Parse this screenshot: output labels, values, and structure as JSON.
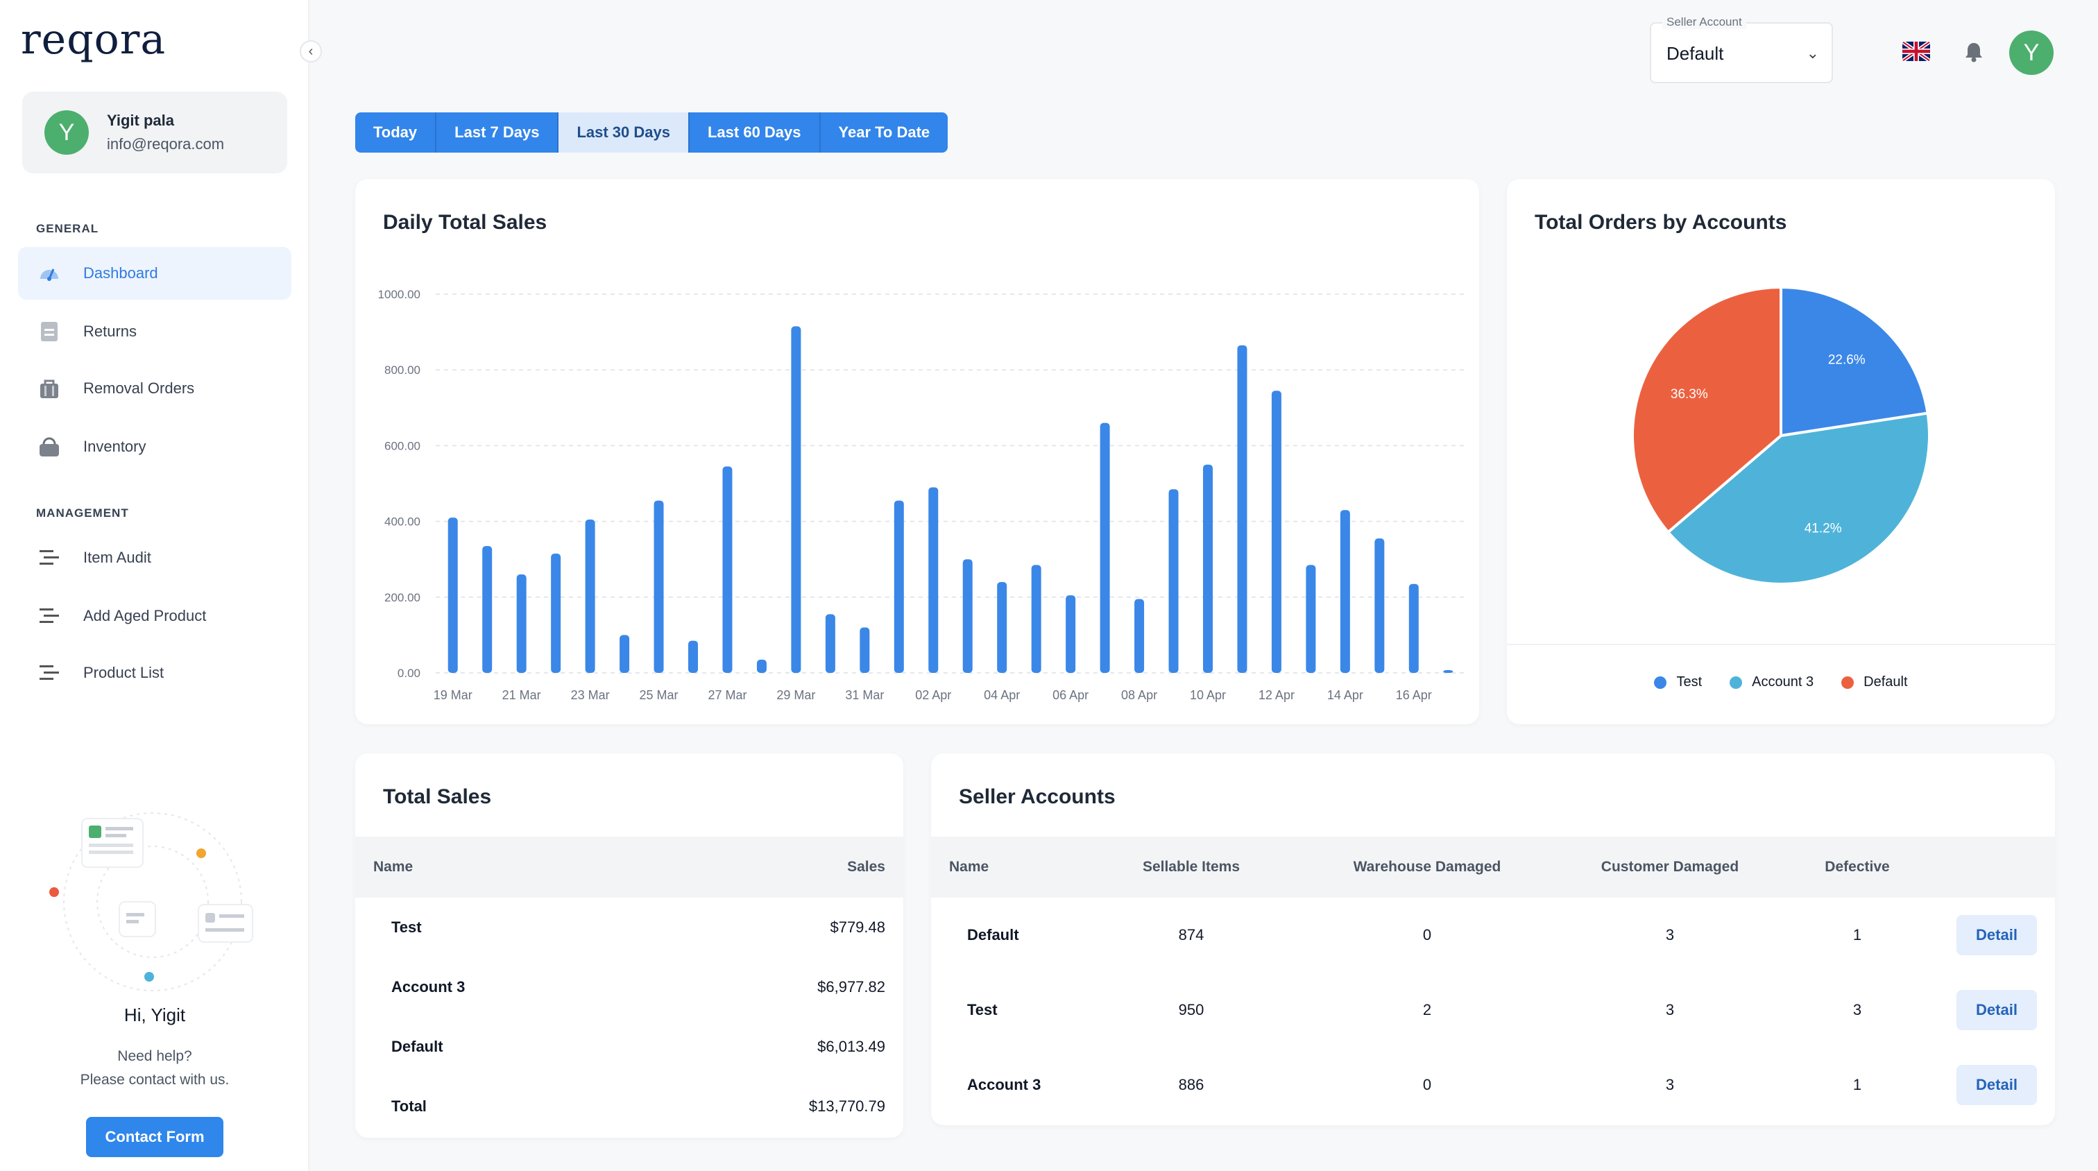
{
  "brand": {
    "logo": "reqora"
  },
  "user": {
    "initial": "Y",
    "name": "Yigit pala",
    "email": "info@reqora.com"
  },
  "sidebar": {
    "general_label": "GENERAL",
    "management_label": "MANAGEMENT",
    "general": [
      {
        "label": "Dashboard",
        "icon": "dashboard-icon",
        "active": true
      },
      {
        "label": "Returns",
        "icon": "document-icon"
      },
      {
        "label": "Removal Orders",
        "icon": "bag-icon"
      },
      {
        "label": "Inventory",
        "icon": "basket-icon"
      }
    ],
    "management": [
      {
        "label": "Item Audit",
        "icon": "lines-icon"
      },
      {
        "label": "Add Aged Product",
        "icon": "lines-icon"
      },
      {
        "label": "Product List",
        "icon": "lines-icon"
      }
    ],
    "help": {
      "title": "Hi, Yigit",
      "line1": "Need help?",
      "line2": "Please contact with us.",
      "button": "Contact Form"
    }
  },
  "header": {
    "seller_label": "Seller Account",
    "seller_value": "Default",
    "flag": "uk-flag-icon",
    "bell": "bell-icon",
    "avatar": "Y"
  },
  "ranges": [
    {
      "label": "Today"
    },
    {
      "label": "Last 7 Days"
    },
    {
      "label": "Last 30 Days",
      "active": true
    },
    {
      "label": "Last 60 Days"
    },
    {
      "label": "Year To Date"
    }
  ],
  "daily_sales": {
    "title": "Daily Total Sales"
  },
  "orders": {
    "title": "Total Orders by Accounts"
  },
  "chart_data": [
    {
      "type": "bar",
      "title": "Daily Total Sales",
      "ylim": [
        0,
        1000
      ],
      "yticks": [
        "1000.00",
        "800.00",
        "600.00",
        "400.00",
        "200.00",
        "0.00"
      ],
      "xtick_labels": [
        "19 Mar",
        "21 Mar",
        "23 Mar",
        "25 Mar",
        "27 Mar",
        "29 Mar",
        "31 Mar",
        "02 Apr",
        "04 Apr",
        "06 Apr",
        "08 Apr",
        "10 Apr",
        "12 Apr",
        "14 Apr",
        "16 Apr"
      ],
      "values": [
        410,
        335,
        260,
        315,
        405,
        100,
        455,
        85,
        545,
        35,
        915,
        155,
        120,
        455,
        490,
        300,
        240,
        285,
        205,
        660,
        195,
        485,
        550,
        865,
        745,
        285,
        430,
        355,
        235,
        5
      ],
      "grid": true,
      "color": "#3a87e8"
    },
    {
      "type": "pie",
      "title": "Total Orders by Accounts",
      "slices": [
        {
          "name": "Test",
          "value": 22.6,
          "label": "22.6%",
          "color": "#3b87e8"
        },
        {
          "name": "Account 3",
          "value": 41.2,
          "label": "41.2%",
          "color": "#4fb3d9"
        },
        {
          "name": "Default",
          "value": 36.3,
          "label": "36.3%",
          "color": "#eb6140"
        }
      ],
      "legend": "bottom"
    }
  ],
  "total_sales": {
    "title": "Total Sales",
    "headers": {
      "name": "Name",
      "sales": "Sales"
    },
    "rows": [
      {
        "name": "Test",
        "sales": "$779.48"
      },
      {
        "name": "Account 3",
        "sales": "$6,977.82"
      },
      {
        "name": "Default",
        "sales": "$6,013.49"
      },
      {
        "name": "Total",
        "sales": "$13,770.79"
      }
    ]
  },
  "seller_accounts": {
    "title": "Seller Accounts",
    "headers": [
      "Name",
      "Sellable Items",
      "Warehouse Damaged",
      "Customer Damaged",
      "Defective"
    ],
    "detail_label": "Detail",
    "rows": [
      {
        "name": "Default",
        "sellable": "874",
        "warehouse": "0",
        "customer": "3",
        "defective": "1"
      },
      {
        "name": "Test",
        "sellable": "950",
        "warehouse": "2",
        "customer": "3",
        "defective": "3"
      },
      {
        "name": "Account 3",
        "sellable": "886",
        "warehouse": "0",
        "customer": "3",
        "defective": "1"
      }
    ]
  }
}
